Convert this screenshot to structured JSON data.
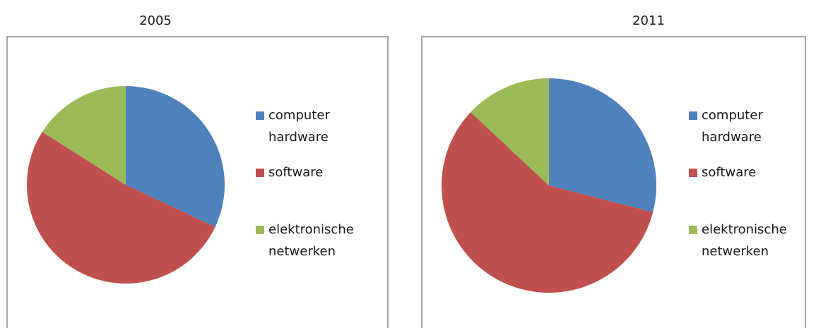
{
  "chart_data": [
    {
      "type": "pie",
      "title": "2005",
      "categories": [
        "computer hardware",
        "software",
        "elektronische netwerken"
      ],
      "values": [
        32,
        52,
        16
      ],
      "colors": [
        "#4f81bd",
        "#c0504d",
        "#9bbb59"
      ],
      "legend": "right"
    },
    {
      "type": "pie",
      "title": "2011",
      "categories": [
        "computer hardware",
        "software",
        "elektronische netwerken"
      ],
      "values": [
        29,
        58,
        13
      ],
      "colors": [
        "#4f81bd",
        "#c0504d",
        "#9bbb59"
      ],
      "legend": "right"
    }
  ]
}
